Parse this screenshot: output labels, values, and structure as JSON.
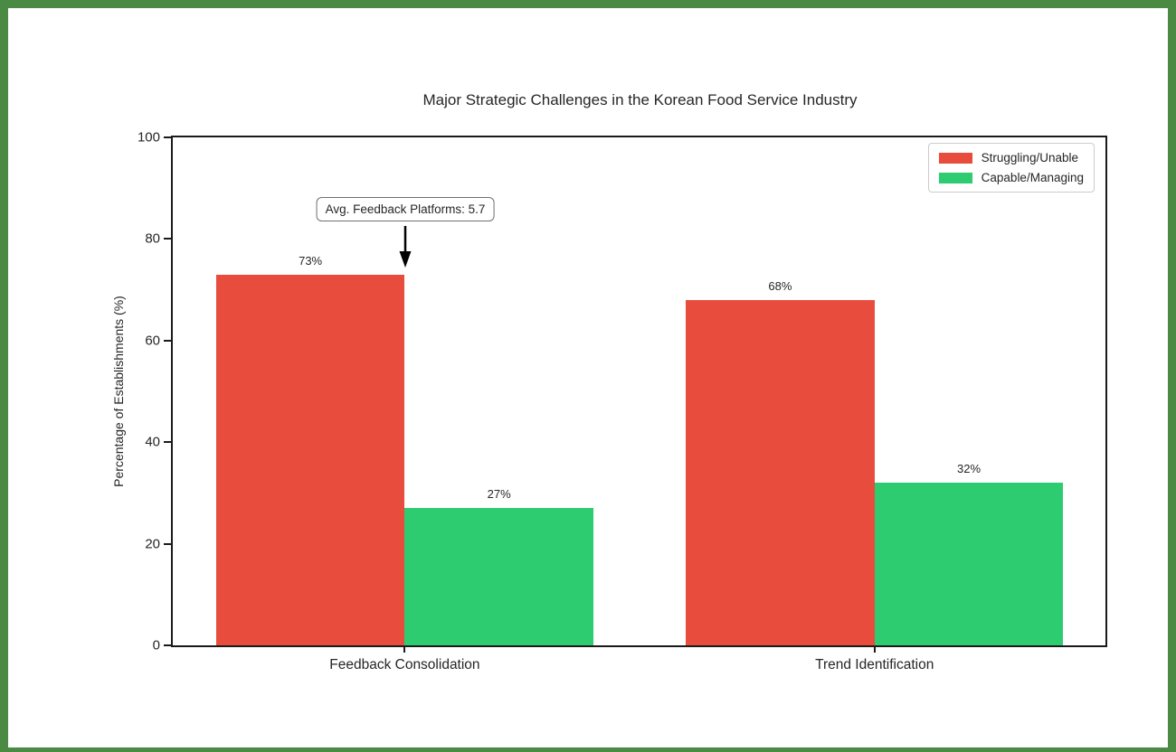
{
  "frame": {
    "border_color": "#4a8a43",
    "background": "#ffffff"
  },
  "chart_data": {
    "type": "bar",
    "title": "Major Strategic Challenges in the Korean Food Service Industry",
    "xlabel": "",
    "ylabel": "Percentage of Establishments (%)",
    "categories": [
      "Feedback Consolidation",
      "Trend Identification"
    ],
    "series": [
      {
        "name": "Struggling/Unable",
        "color": "#e74c3c",
        "values": [
          73,
          68
        ],
        "value_labels": [
          "73%",
          "68%"
        ]
      },
      {
        "name": "Capable/Managing",
        "color": "#2ecc71",
        "values": [
          27,
          32
        ],
        "value_labels": [
          "27%",
          "32%"
        ]
      }
    ],
    "ylim": [
      0,
      100
    ],
    "yticks": [
      0,
      20,
      40,
      60,
      80,
      100
    ],
    "grid": false,
    "legend_position": "upper right",
    "annotation": {
      "text": "Avg. Feedback Platforms: 5.7",
      "arrow_direction": "down",
      "points_to": "top of Feedback Consolidation red bar"
    },
    "axis_color": "#1a1a1a",
    "text_color": "#262626"
  }
}
